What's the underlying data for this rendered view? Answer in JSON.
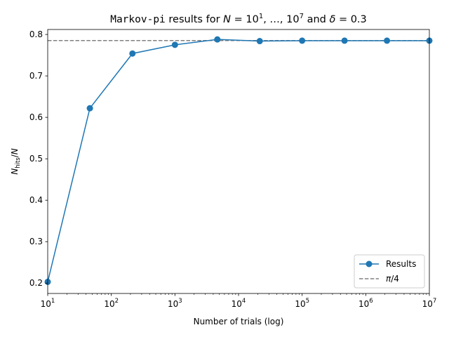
{
  "chart_data": {
    "type": "line",
    "title": {
      "mono_part": "Markov-pi",
      "part1": " results for ",
      "N": "N",
      "eq": " = 10",
      "sup1": "1",
      "mid": ", …, 10",
      "sup7": "7",
      "and": " and ",
      "delta": "δ",
      "delta_val": " = 0.3"
    },
    "xlabel": "Number of trials (log)",
    "ylabel": {
      "N": "N",
      "sub": "hits",
      "slash": "/",
      "N2": "N"
    },
    "x_scale": "log",
    "xlim": [
      10,
      10000000
    ],
    "ylim": [
      0.175,
      0.812
    ],
    "x_ticks": [
      {
        "value": 10,
        "base": "10",
        "exp": "1"
      },
      {
        "value": 100,
        "base": "10",
        "exp": "2"
      },
      {
        "value": 1000,
        "base": "10",
        "exp": "3"
      },
      {
        "value": 10000,
        "base": "10",
        "exp": "4"
      },
      {
        "value": 100000,
        "base": "10",
        "exp": "5"
      },
      {
        "value": 1000000,
        "base": "10",
        "exp": "6"
      },
      {
        "value": 10000000,
        "base": "10",
        "exp": "7"
      }
    ],
    "y_ticks": [
      {
        "value": 0.2,
        "label": "0.2"
      },
      {
        "value": 0.3,
        "label": "0.3"
      },
      {
        "value": 0.4,
        "label": "0.4"
      },
      {
        "value": 0.5,
        "label": "0.5"
      },
      {
        "value": 0.6,
        "label": "0.6"
      },
      {
        "value": 0.7,
        "label": "0.7"
      },
      {
        "value": 0.8,
        "label": "0.8"
      }
    ],
    "series": [
      {
        "name": "Results",
        "color": "#1f77b4",
        "x": [
          10,
          46,
          215,
          1000,
          4642,
          21544,
          100000,
          464159,
          2154435,
          10000000
        ],
        "y": [
          0.203,
          0.622,
          0.754,
          0.775,
          0.788,
          0.784,
          0.785,
          0.785,
          0.785,
          0.785
        ]
      }
    ],
    "reference_line": {
      "name": "π/4",
      "value": 0.785398,
      "color": "#808080",
      "style": "dashed"
    },
    "legend": {
      "position": "lower-right",
      "entries": [
        {
          "label": "Results"
        },
        {
          "label_var": "π",
          "label_rest": "/4"
        }
      ]
    },
    "grid": false
  }
}
